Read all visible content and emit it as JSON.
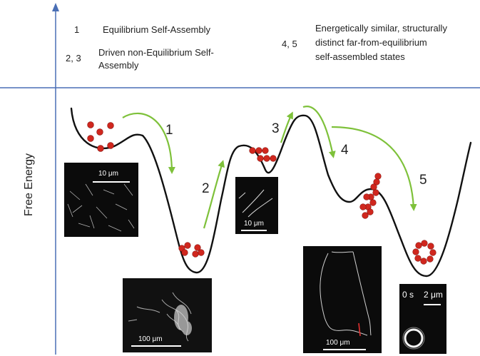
{
  "legend": {
    "item1_num": "1",
    "item1_text": "Equilibrium Self-Assembly",
    "item23_num": "2, 3",
    "item23_text_line1": "Driven non-Equilibrium Self-",
    "item23_text_line2": "Assembly",
    "item45_num": "4, 5",
    "item45_text_line1": "Energetically similar, structurally",
    "item45_text_line2": "distinct far-from-equilibrium",
    "item45_text_line3": "self-assembled states"
  },
  "axis": {
    "ylabel": "Free Energy"
  },
  "steps": [
    "1",
    "2",
    "3",
    "4",
    "5"
  ],
  "panels": {
    "p1_scale": "10 μm",
    "p2_scale": "100 μm",
    "p3_scale": "10 μm",
    "p4_scale": "100 μm",
    "p5_time": "0 s",
    "p5_scale": "2 μm"
  },
  "colors": {
    "axis": "#4a6fb5",
    "curve": "#111111",
    "arrow": "#7ec13a",
    "particle": "#d0271e",
    "panel": "#0b0b0b"
  }
}
